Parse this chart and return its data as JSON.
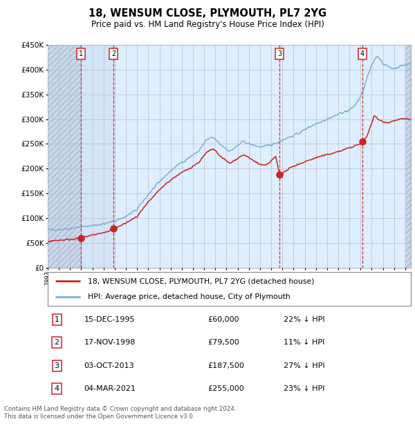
{
  "title": "18, WENSUM CLOSE, PLYMOUTH, PL7 2YG",
  "subtitle": "Price paid vs. HM Land Registry's House Price Index (HPI)",
  "legend_line1": "18, WENSUM CLOSE, PLYMOUTH, PL7 2YG (detached house)",
  "legend_line2": "HPI: Average price, detached house, City of Plymouth",
  "footer_line1": "Contains HM Land Registry data © Crown copyright and database right 2024.",
  "footer_line2": "This data is licensed under the Open Government Licence v3.0.",
  "transactions": [
    {
      "num": 1,
      "date": "15-DEC-1995",
      "price": 60000,
      "hpi_rel": "22% ↓ HPI",
      "x_year": 1995.96
    },
    {
      "num": 2,
      "date": "17-NOV-1998",
      "price": 79500,
      "hpi_rel": "11% ↓ HPI",
      "x_year": 1998.88
    },
    {
      "num": 3,
      "date": "03-OCT-2013",
      "price": 187500,
      "hpi_rel": "27% ↓ HPI",
      "x_year": 2013.75
    },
    {
      "num": 4,
      "date": "04-MAR-2021",
      "price": 255000,
      "hpi_rel": "23% ↓ HPI",
      "x_year": 2021.17
    }
  ],
  "x_start": 1993.0,
  "x_end": 2025.5,
  "y_min": 0,
  "y_max": 450000,
  "y_ticks": [
    0,
    50000,
    100000,
    150000,
    200000,
    250000,
    300000,
    350000,
    400000,
    450000
  ],
  "x_ticks": [
    1993,
    1994,
    1995,
    1996,
    1997,
    1998,
    1999,
    2000,
    2001,
    2002,
    2003,
    2004,
    2005,
    2006,
    2007,
    2008,
    2009,
    2010,
    2011,
    2012,
    2013,
    2014,
    2015,
    2016,
    2017,
    2018,
    2019,
    2020,
    2021,
    2022,
    2023,
    2024,
    2025
  ],
  "hpi_color": "#7bafd4",
  "price_color": "#cc2222",
  "bg_color": "#ddeeff",
  "hatch_color": "#c8d8e8",
  "grid_color": "#bbbbcc",
  "dashed_line_color": "#cc3333",
  "transaction_box_color": "#cc2222",
  "hpi_key_points": [
    [
      1993.0,
      76000
    ],
    [
      1994.0,
      77000
    ],
    [
      1995.0,
      79000
    ],
    [
      1996.0,
      82000
    ],
    [
      1997.0,
      85000
    ],
    [
      1998.0,
      88000
    ],
    [
      1999.0,
      94000
    ],
    [
      2000.0,
      103000
    ],
    [
      2001.0,
      118000
    ],
    [
      2002.0,
      148000
    ],
    [
      2002.8,
      168000
    ],
    [
      2003.5,
      185000
    ],
    [
      2004.5,
      205000
    ],
    [
      2005.5,
      220000
    ],
    [
      2006.5,
      235000
    ],
    [
      2007.2,
      258000
    ],
    [
      2007.8,
      263000
    ],
    [
      2008.5,
      248000
    ],
    [
      2009.3,
      235000
    ],
    [
      2009.8,
      243000
    ],
    [
      2010.5,
      255000
    ],
    [
      2011.0,
      250000
    ],
    [
      2011.5,
      247000
    ],
    [
      2012.0,
      244000
    ],
    [
      2012.5,
      245000
    ],
    [
      2013.0,
      248000
    ],
    [
      2013.5,
      252000
    ],
    [
      2014.0,
      258000
    ],
    [
      2014.8,
      265000
    ],
    [
      2015.5,
      272000
    ],
    [
      2016.3,
      283000
    ],
    [
      2017.0,
      291000
    ],
    [
      2017.8,
      298000
    ],
    [
      2018.5,
      305000
    ],
    [
      2019.3,
      313000
    ],
    [
      2020.0,
      318000
    ],
    [
      2020.5,
      328000
    ],
    [
      2021.0,
      345000
    ],
    [
      2021.3,
      362000
    ],
    [
      2021.6,
      385000
    ],
    [
      2022.0,
      408000
    ],
    [
      2022.3,
      422000
    ],
    [
      2022.5,
      428000
    ],
    [
      2022.8,
      420000
    ],
    [
      2023.0,
      412000
    ],
    [
      2023.3,
      408000
    ],
    [
      2023.6,
      405000
    ],
    [
      2024.0,
      402000
    ],
    [
      2024.3,
      405000
    ],
    [
      2024.7,
      408000
    ],
    [
      2025.0,
      410000
    ],
    [
      2025.4,
      412000
    ]
  ],
  "price_key_points": [
    [
      1993.0,
      53000
    ],
    [
      1994.0,
      55000
    ],
    [
      1995.5,
      58000
    ],
    [
      1995.96,
      60000
    ],
    [
      1996.5,
      63000
    ],
    [
      1997.5,
      68000
    ],
    [
      1998.5,
      73000
    ],
    [
      1998.88,
      79500
    ],
    [
      1999.3,
      82000
    ],
    [
      2000.0,
      90000
    ],
    [
      2001.0,
      103000
    ],
    [
      2002.0,
      132000
    ],
    [
      2002.8,
      152000
    ],
    [
      2003.5,
      168000
    ],
    [
      2004.5,
      185000
    ],
    [
      2005.5,
      198000
    ],
    [
      2006.5,
      212000
    ],
    [
      2007.2,
      232000
    ],
    [
      2007.8,
      240000
    ],
    [
      2008.5,
      224000
    ],
    [
      2009.3,
      210000
    ],
    [
      2009.8,
      218000
    ],
    [
      2010.5,
      228000
    ],
    [
      2011.0,
      222000
    ],
    [
      2011.5,
      215000
    ],
    [
      2012.0,
      208000
    ],
    [
      2012.5,
      206000
    ],
    [
      2013.0,
      215000
    ],
    [
      2013.4,
      225000
    ],
    [
      2013.75,
      187500
    ],
    [
      2014.0,
      190000
    ],
    [
      2014.5,
      198000
    ],
    [
      2015.0,
      205000
    ],
    [
      2015.8,
      212000
    ],
    [
      2016.5,
      218000
    ],
    [
      2017.3,
      224000
    ],
    [
      2018.0,
      228000
    ],
    [
      2018.8,
      233000
    ],
    [
      2019.5,
      238000
    ],
    [
      2020.0,
      242000
    ],
    [
      2020.5,
      246000
    ],
    [
      2021.0,
      250000
    ],
    [
      2021.17,
      255000
    ],
    [
      2021.5,
      262000
    ],
    [
      2022.0,
      292000
    ],
    [
      2022.2,
      307000
    ],
    [
      2022.4,
      303000
    ],
    [
      2022.7,
      298000
    ],
    [
      2023.0,
      295000
    ],
    [
      2023.5,
      293000
    ],
    [
      2024.0,
      297000
    ],
    [
      2024.5,
      300000
    ],
    [
      2025.0,
      300000
    ],
    [
      2025.4,
      300000
    ]
  ]
}
